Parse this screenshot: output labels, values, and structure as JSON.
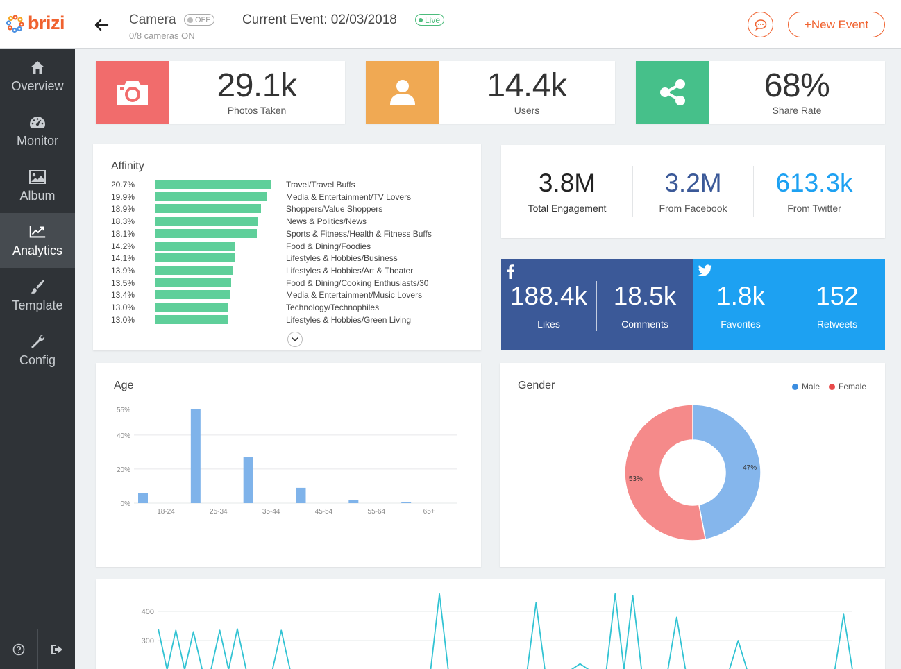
{
  "app": {
    "brand": "brizi"
  },
  "header": {
    "camera_title": "Camera",
    "camera_toggle": "OFF",
    "camera_sub": "0/8 cameras ON",
    "event_title": "Current Event: 02/03/2018",
    "live_label": "Live",
    "new_event_label": "+New Event"
  },
  "sidebar": {
    "items": [
      {
        "label": "Overview",
        "icon": "home-icon"
      },
      {
        "label": "Monitor",
        "icon": "dashboard-icon"
      },
      {
        "label": "Album",
        "icon": "image-icon"
      },
      {
        "label": "Analytics",
        "icon": "chart-icon",
        "active": true
      },
      {
        "label": "Template",
        "icon": "brush-icon"
      },
      {
        "label": "Config",
        "icon": "wrench-icon"
      }
    ]
  },
  "stats": {
    "photos": {
      "value": "29.1k",
      "label": "Photos Taken",
      "color": "#f16c6c"
    },
    "users": {
      "value": "14.4k",
      "label": "Users",
      "color": "#f0a953"
    },
    "share": {
      "value": "68%",
      "label": "Share Rate",
      "color": "#46c08a"
    }
  },
  "affinity": {
    "title": "Affinity",
    "rows": [
      {
        "pct": "20.7%",
        "value": 20.7,
        "name": "Travel/Travel Buffs"
      },
      {
        "pct": "19.9%",
        "value": 19.9,
        "name": "Media & Entertainment/TV Lovers"
      },
      {
        "pct": "18.9%",
        "value": 18.9,
        "name": "Shoppers/Value Shoppers"
      },
      {
        "pct": "18.3%",
        "value": 18.3,
        "name": "News & Politics/News"
      },
      {
        "pct": "18.1%",
        "value": 18.1,
        "name": "Sports & Fitness/Health & Fitness Buffs"
      },
      {
        "pct": "14.2%",
        "value": 14.2,
        "name": "Food & Dining/Foodies"
      },
      {
        "pct": "14.1%",
        "value": 14.1,
        "name": "Lifestyles & Hobbies/Business"
      },
      {
        "pct": "13.9%",
        "value": 13.9,
        "name": "Lifestyles & Hobbies/Art & Theater"
      },
      {
        "pct": "13.5%",
        "value": 13.5,
        "name": "Food & Dining/Cooking Enthusiasts/30"
      },
      {
        "pct": "13.4%",
        "value": 13.4,
        "name": "Media & Entertainment/Music Lovers"
      },
      {
        "pct": "13.0%",
        "value": 13.0,
        "name": "Technology/Technophiles"
      },
      {
        "pct": "13.0%",
        "value": 13.0,
        "name": "Lifestyles & Hobbies/Green Living"
      }
    ]
  },
  "engagement": {
    "total": {
      "value": "3.8M",
      "label": "Total Engagement"
    },
    "facebook": {
      "value": "3.2M",
      "label": "From Facebook",
      "color": "#3b5998"
    },
    "twitter": {
      "value": "613.3k",
      "label": "From Twitter",
      "color": "#1da1f2"
    }
  },
  "social": {
    "facebook": {
      "color": "#3b5998",
      "likes": "188.4k",
      "likes_label": "Likes",
      "comments": "18.5k",
      "comments_label": "Comments"
    },
    "twitter": {
      "color": "#1da1f2",
      "favorites": "1.8k",
      "favorites_label": "Favorites",
      "retweets": "152",
      "retweets_label": "Retweets"
    }
  },
  "chart_data": [
    {
      "type": "bar",
      "title": "Age",
      "categories": [
        "18-24",
        "25-34",
        "35-44",
        "45-54",
        "55-64",
        "65+"
      ],
      "values": [
        6,
        55,
        27,
        9,
        2,
        0.5
      ],
      "ytick_labels": [
        "0%",
        "20%",
        "40%",
        "55%"
      ],
      "ytick_values": [
        0,
        20,
        40,
        55
      ],
      "ylim": [
        0,
        55
      ],
      "color": "#7fb3ea"
    },
    {
      "type": "pie",
      "title": "Gender",
      "labels": [
        "Male",
        "Female"
      ],
      "values": [
        47,
        53
      ],
      "value_labels": [
        "47%",
        "53%"
      ],
      "colors": [
        "#85b6ec",
        "#f58a8a"
      ],
      "legend_position": "top-right"
    },
    {
      "type": "line",
      "ytick_labels": [
        "300",
        "400"
      ],
      "ytick_values": [
        300,
        400
      ],
      "color": "#32c3d3",
      "x": [
        0,
        1,
        2,
        3,
        4,
        5,
        6,
        7,
        8,
        9,
        10,
        11,
        12,
        13,
        14,
        15,
        16,
        17,
        18,
        19,
        20,
        21,
        22,
        23,
        24,
        25,
        26,
        27,
        28,
        29,
        30,
        31,
        32,
        33,
        34,
        35,
        36,
        37,
        38,
        39,
        40,
        41,
        42,
        43,
        44,
        45,
        46,
        47,
        48,
        49,
        50,
        51,
        52,
        53,
        54,
        55,
        56,
        57,
        58,
        59,
        60,
        61,
        62,
        63,
        64,
        65,
        66,
        67,
        68,
        69,
        70,
        71,
        72,
        73,
        74,
        75,
        76,
        77,
        78,
        79
      ],
      "values": [
        340,
        200,
        335,
        200,
        330,
        200,
        200,
        335,
        200,
        340,
        200,
        200,
        200,
        200,
        335,
        200,
        200,
        200,
        200,
        200,
        200,
        200,
        200,
        200,
        200,
        200,
        200,
        200,
        200,
        200,
        200,
        200,
        460,
        200,
        200,
        200,
        200,
        200,
        200,
        200,
        200,
        200,
        200,
        430,
        200,
        200,
        200,
        200,
        220,
        200,
        200,
        200,
        460,
        200,
        455,
        200,
        200,
        200,
        200,
        380,
        200,
        200,
        200,
        200,
        200,
        200,
        300,
        200,
        200,
        200,
        200,
        200,
        200,
        200,
        200,
        200,
        200,
        200,
        390,
        200
      ]
    }
  ]
}
